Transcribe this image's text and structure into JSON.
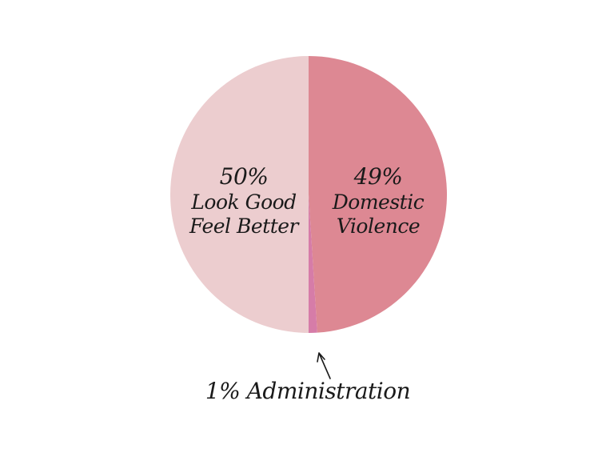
{
  "chart_data": {
    "type": "pie",
    "categories": [
      "Domestic\nViolence",
      "Administration",
      "Look Good\nFeel Better"
    ],
    "values": [
      49,
      1,
      50
    ],
    "value_labels": [
      "49%",
      "1%",
      "50%"
    ],
    "colors": [
      "#dd8893",
      "#d67ca8",
      "#eccdcf"
    ]
  }
}
